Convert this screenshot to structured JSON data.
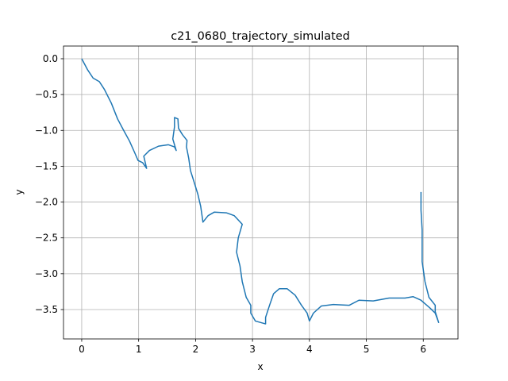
{
  "chart_data": {
    "type": "line",
    "title": "c21_0680_trajectory_simulated",
    "x_label": "x",
    "y_label": "y",
    "grid": true,
    "xlim": [
      -0.32,
      6.61
    ],
    "ylim": [
      -3.91,
      0.177
    ],
    "xticks": [
      0,
      1,
      2,
      3,
      4,
      5,
      6
    ],
    "yticks": [
      {
        "value": 0,
        "label": "0.0"
      },
      {
        "value": -0.5,
        "label": "−0.5"
      },
      {
        "value": -1,
        "label": "−1.0"
      },
      {
        "value": -1.5,
        "label": "−1.5"
      },
      {
        "value": -2,
        "label": "−2.0"
      },
      {
        "value": -2.5,
        "label": "−2.5"
      },
      {
        "value": -3,
        "label": "−3.0"
      },
      {
        "value": -3.5,
        "label": "−3.5"
      }
    ],
    "series": [
      {
        "color": "#1f77b4",
        "x": [
          0,
          0.1,
          0.2,
          0.31,
          0.4,
          0.52,
          0.63,
          0.73,
          0.84,
          0.93,
          0.99,
          1.07,
          1.14,
          1.09,
          1.19,
          1.35,
          1.52,
          1.63,
          1.66,
          1.6,
          1.63,
          1.63,
          1.69,
          1.7,
          1.77,
          1.85,
          1.84,
          1.88,
          1.91,
          1.97,
          2.04,
          2.09,
          2.13,
          2.22,
          2.33,
          2.54,
          2.68,
          2.82,
          2.75,
          2.72,
          2.78,
          2.82,
          2.89,
          2.97,
          2.97,
          3.05,
          3.23,
          3.23,
          3.3,
          3.37,
          3.47,
          3.61,
          3.75,
          3.86,
          3.96,
          4.0,
          4.07,
          4.21,
          4.42,
          4.7,
          4.87,
          5.12,
          5.4,
          5.68,
          5.82,
          5.96,
          6.12,
          6.21,
          6.27,
          6.21,
          6.21,
          6.1,
          6.03,
          5.98,
          5.98,
          5.96,
          5.96
        ],
        "values": [
          0,
          -0.15,
          -0.27,
          -0.32,
          -0.43,
          -0.62,
          -0.84,
          -0.99,
          -1.15,
          -1.31,
          -1.42,
          -1.45,
          -1.53,
          -1.36,
          -1.28,
          -1.22,
          -1.2,
          -1.23,
          -1.28,
          -1.12,
          -0.95,
          -0.82,
          -0.84,
          -0.97,
          -1.06,
          -1.14,
          -1.23,
          -1.39,
          -1.56,
          -1.71,
          -1.89,
          -2.06,
          -2.28,
          -2.19,
          -2.14,
          -2.15,
          -2.19,
          -2.31,
          -2.5,
          -2.7,
          -2.89,
          -3.11,
          -3.33,
          -3.44,
          -3.55,
          -3.66,
          -3.7,
          -3.61,
          -3.44,
          -3.28,
          -3.21,
          -3.21,
          -3.3,
          -3.44,
          -3.55,
          -3.66,
          -3.55,
          -3.45,
          -3.43,
          -3.44,
          -3.37,
          -3.38,
          -3.34,
          -3.34,
          -3.32,
          -3.37,
          -3.48,
          -3.55,
          -3.68,
          -3.53,
          -3.44,
          -3.33,
          -3.11,
          -2.83,
          -2.39,
          -2.11,
          -1.86
        ]
      }
    ]
  }
}
